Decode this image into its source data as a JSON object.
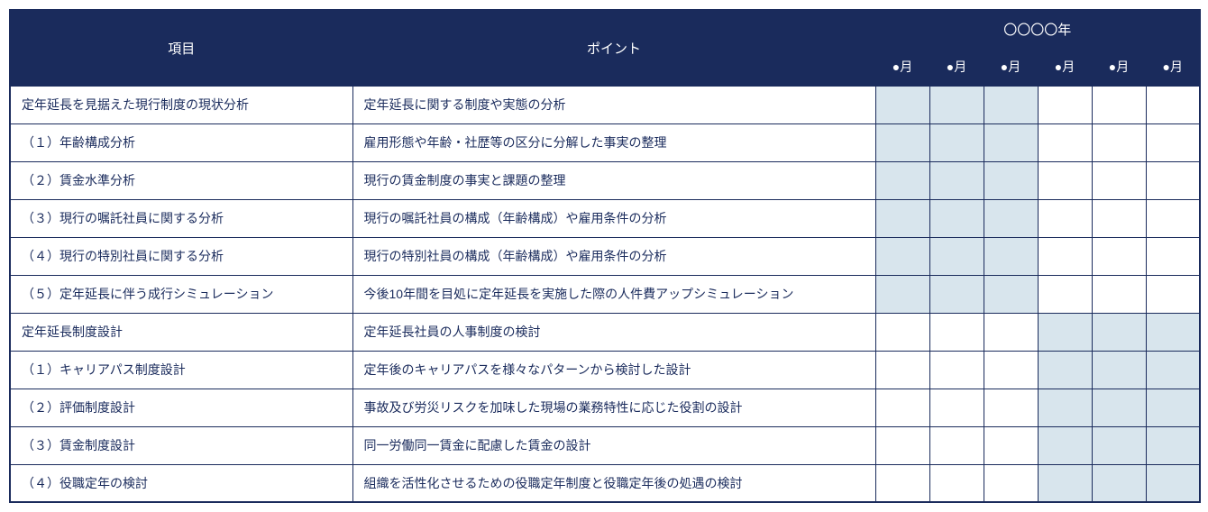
{
  "header": {
    "item_label": "項目",
    "point_label": "ポイント",
    "year_label": "〇〇〇〇年",
    "month_labels": [
      "●月",
      "●月",
      "●月",
      "●月",
      "●月",
      "●月"
    ]
  },
  "colors": {
    "header_bg": "#1a2b5c",
    "header_text": "#ffffff",
    "border": "#1a2b5c",
    "shaded_cell": "#d8e5ed",
    "normal_cell": "#ffffff",
    "body_text": "#1a2b5c"
  },
  "column_widths": {
    "item": 380,
    "point": 580,
    "month": 60
  },
  "rows": [
    {
      "item": "定年延長を見据えた現行制度の現状分析",
      "point": "定年延長に関する制度や実態の分析",
      "months": [
        true,
        true,
        true,
        false,
        false,
        false
      ]
    },
    {
      "item": "（１）年齢構成分析",
      "point": "雇用形態や年齢・社歴等の区分に分解した事実の整理",
      "months": [
        true,
        true,
        true,
        false,
        false,
        false
      ]
    },
    {
      "item": "（２）賃金水準分析",
      "point": "現行の賃金制度の事実と課題の整理",
      "months": [
        true,
        true,
        true,
        false,
        false,
        false
      ]
    },
    {
      "item": "（３）現行の嘱託社員に関する分析",
      "point": "現行の嘱託社員の構成（年齢構成）や雇用条件の分析",
      "months": [
        true,
        true,
        true,
        false,
        false,
        false
      ]
    },
    {
      "item": "（４）現行の特別社員に関する分析",
      "point": "現行の特別社員の構成（年齢構成）や雇用条件の分析",
      "months": [
        true,
        true,
        true,
        false,
        false,
        false
      ]
    },
    {
      "item": "（５）定年延長に伴う成行シミュレーション",
      "point": "今後10年間を目処に定年延長を実施した際の人件費アップシミュレーション",
      "months": [
        true,
        true,
        true,
        false,
        false,
        false
      ]
    },
    {
      "item": "定年延長制度設計",
      "point": "定年延長社員の人事制度の検討",
      "months": [
        false,
        false,
        false,
        true,
        true,
        true
      ]
    },
    {
      "item": "（１）キャリアパス制度設計",
      "point": "定年後のキャリアパスを様々なパターンから検討した設計",
      "months": [
        false,
        false,
        false,
        true,
        true,
        true
      ]
    },
    {
      "item": "（２）評価制度設計",
      "point": "事故及び労災リスクを加味した現場の業務特性に応じた役割の設計",
      "months": [
        false,
        false,
        false,
        true,
        true,
        true
      ]
    },
    {
      "item": "（３）賃金制度設計",
      "point": "同一労働同一賃金に配慮した賃金の設計",
      "months": [
        false,
        false,
        false,
        true,
        true,
        true
      ]
    },
    {
      "item": "（４）役職定年の検討",
      "point": "組織を活性化させるための役職定年制度と役職定年後の処遇の検討",
      "months": [
        false,
        false,
        false,
        true,
        true,
        true
      ]
    }
  ]
}
